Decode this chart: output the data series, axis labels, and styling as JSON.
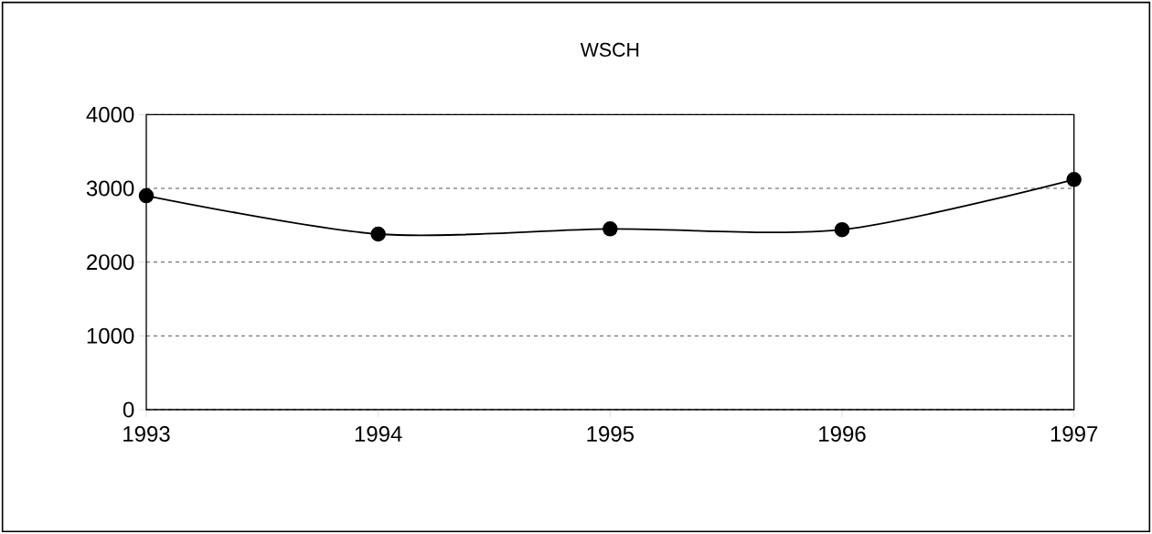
{
  "chart_data": {
    "type": "line",
    "title": "WSCH",
    "x": [
      1993,
      1994,
      1995,
      1996,
      1997
    ],
    "series": [
      {
        "color": "#000000",
        "values": [
          2900,
          2380,
          2450,
          2440,
          3120
        ]
      }
    ],
    "xlim": [
      1993,
      1997
    ],
    "xticks": [
      1993,
      1994,
      1995,
      1996,
      1997
    ],
    "ylim": [
      0,
      4000
    ],
    "yticks": [
      0,
      1000,
      2000,
      3000,
      4000
    ],
    "grid": "y",
    "marker": "circle",
    "line_style": "solid",
    "legend": false
  }
}
